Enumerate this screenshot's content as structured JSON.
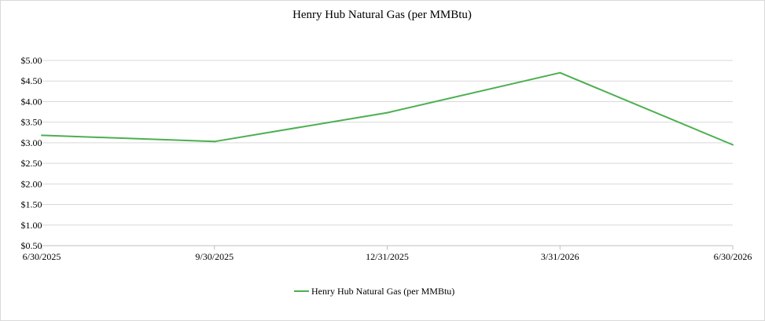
{
  "chart_data": {
    "type": "line",
    "title": "Henry Hub Natural Gas (per MMBtu)",
    "xlabel": "",
    "ylabel": "",
    "categories": [
      "6/30/2025",
      "9/30/2025",
      "12/31/2025",
      "3/31/2026",
      "6/30/2026"
    ],
    "y_tick_labels": [
      "$0.50",
      "$1.00",
      "$1.50",
      "$2.00",
      "$2.50",
      "$3.00",
      "$3.50",
      "$4.00",
      "$4.50",
      "$5.00"
    ],
    "ylim": [
      0.5,
      5.0
    ],
    "y_step": 0.5,
    "grid": true,
    "legend_position": "bottom",
    "series": [
      {
        "name": "Henry Hub Natural Gas (per MMBtu)",
        "color": "#4caf50",
        "values": [
          3.18,
          3.03,
          3.73,
          4.7,
          2.95
        ]
      }
    ]
  }
}
